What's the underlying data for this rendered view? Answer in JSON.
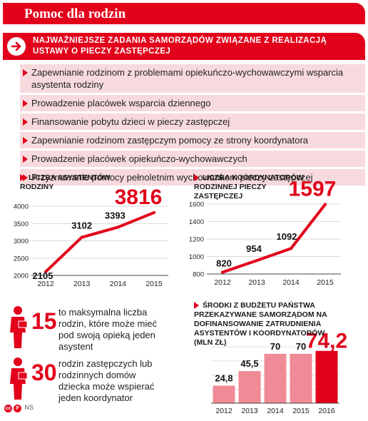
{
  "header": {
    "title": "Pomoc dla rodzin"
  },
  "banner": {
    "text": "Najważniejsze zadania samorządów związane z realizacją ustawy o pieczy zastępczej"
  },
  "tasks": [
    "Zapewnianie rodzinom z problemami opiekuńczo-wychowawczymi wsparcia asystenta rodziny",
    "Prowadzenie placówek wsparcia dziennego",
    "Finansowanie pobytu dzieci w pieczy zastępczej",
    "Zapewnianie rodzinom zastępczym pomocy ze strony koordynatora",
    "Prowadzenie placówek opiekuńczo-wychowawczych",
    "Przyznawanie pomocy pełnoletnim wychowankom pieczy zastępczej"
  ],
  "stats": [
    {
      "number": "15",
      "text": "to maksymalna liczba rodzin, które może mieć pod swoją opieką jeden asystent"
    },
    {
      "number": "30",
      "text": "rodzin zastępczych lub rodzinnych domów dziecka może wspierać jeden koordynator"
    }
  ],
  "footer": {
    "credit": "NS"
  },
  "colors": {
    "accent": "#e2001a",
    "bar": "#f08a96",
    "bar_highlight": "#e2001a",
    "task_bg": "#f7dadd"
  },
  "chart_data": [
    {
      "type": "line",
      "title": "Liczba asystentów rodziny",
      "categories": [
        "2012",
        "2013",
        "2014",
        "2015"
      ],
      "values": [
        2105,
        3102,
        3393,
        3816
      ],
      "value_labels": [
        "2105",
        "3102",
        "3393",
        "3816"
      ],
      "ylim": [
        2000,
        4000
      ],
      "yticks": [
        "2000",
        "2500",
        "3000",
        "3500",
        "4000"
      ],
      "grid": true
    },
    {
      "type": "line",
      "title": "Liczba koordynatorów rodzinnej pieczy zastępczej",
      "categories": [
        "2012",
        "2013",
        "2014",
        "2015"
      ],
      "values": [
        820,
        954,
        1092,
        1597
      ],
      "value_labels": [
        "820",
        "954",
        "1092",
        "1597"
      ],
      "ylim": [
        800,
        1600
      ],
      "yticks": [
        "800",
        "1000",
        "1200",
        "1400",
        "1600"
      ],
      "grid": true
    },
    {
      "type": "bar",
      "title": "Środki z budżetu państwa przekazywane samorządom na dofinansowanie zatrudnienia asystentów i koordynatorów (mln zł)",
      "categories": [
        "2012",
        "2013",
        "2014",
        "2015",
        "2016"
      ],
      "values": [
        24.8,
        45.5,
        70,
        70,
        74.2
      ],
      "value_labels": [
        "24,8",
        "45,5",
        "70",
        "70",
        "74,2"
      ],
      "ylim": [
        0,
        80
      ],
      "yticks": [
        "0",
        "20",
        "40",
        "60",
        "80"
      ],
      "grid": true
    }
  ]
}
